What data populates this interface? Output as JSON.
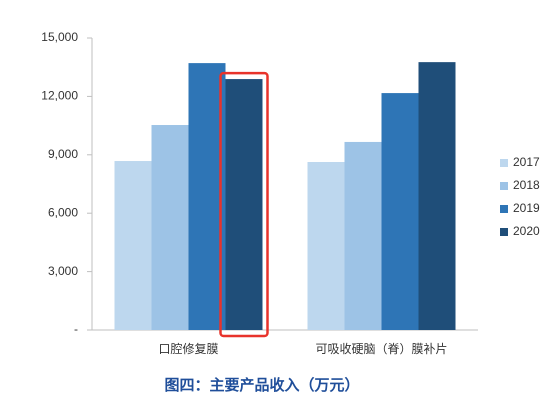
{
  "chart_data": {
    "type": "bar",
    "title": "图四：主要产品收入（万元）",
    "categories": [
      "口腔修复膜",
      "可吸收硬脑（脊）膜补片"
    ],
    "series": [
      {
        "name": "2017",
        "color": "#bdd7ee",
        "values": [
          8680,
          8630
        ]
      },
      {
        "name": "2018",
        "color": "#9dc3e6",
        "values": [
          10530,
          9660
        ]
      },
      {
        "name": "2019",
        "color": "#2e75b6",
        "values": [
          13710,
          12170
        ]
      },
      {
        "name": "2020",
        "color": "#1f4e79",
        "values": [
          12890,
          13760
        ]
      }
    ],
    "ylim": [
      0,
      15000
    ],
    "yticks": [
      {
        "value": 0,
        "label": "-"
      },
      {
        "value": 3000,
        "label": "3,000"
      },
      {
        "value": 6000,
        "label": "6,000"
      },
      {
        "value": 9000,
        "label": "9,000"
      },
      {
        "value": 12000,
        "label": "12,000"
      },
      {
        "value": 15000,
        "label": "15,000"
      }
    ],
    "grid": false,
    "legend": "right"
  }
}
